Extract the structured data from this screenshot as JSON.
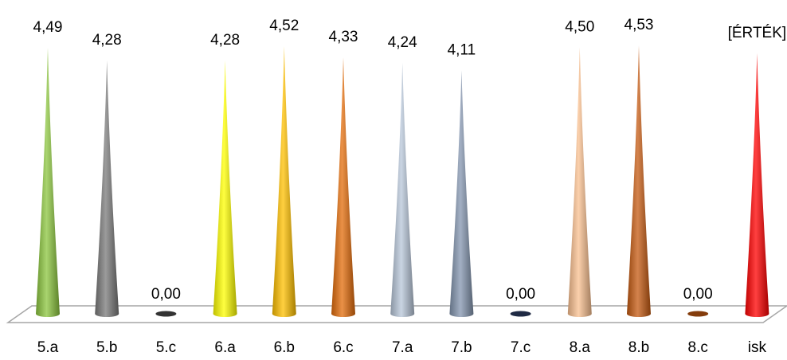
{
  "chart_data": {
    "type": "bar",
    "shape": "cone",
    "categories": [
      "5.a",
      "5.b",
      "5.c",
      "6.a",
      "6.b",
      "6.c",
      "7.a",
      "7.b",
      "7.c",
      "8.a",
      "8.b",
      "8.c",
      "isk"
    ],
    "values": [
      4.49,
      4.28,
      0.0,
      4.28,
      4.52,
      4.33,
      4.24,
      4.11,
      0.0,
      4.5,
      4.53,
      0.0,
      4.4
    ],
    "data_labels": [
      "4,49",
      "4,28",
      "0,00",
      "4,28",
      "4,52",
      "4,33",
      "4,24",
      "4,11",
      "0,00",
      "4,50",
      "4,53",
      "0,00",
      "[ÉRTÉK]"
    ],
    "label_colors": [
      "#000000",
      "#000000",
      "#000000",
      "#000000",
      "#000000",
      "#000000",
      "#000000",
      "#000000",
      "#000000",
      "#000000",
      "#000000",
      "#000000",
      "#ff0000"
    ],
    "colors": [
      "#8cc63f",
      "#7a7a7a",
      "#333333",
      "#ffff00",
      "#ffc000",
      "#e36c0a",
      "#b8c7d9",
      "#8496b0",
      "#1f2a44",
      "#fac090",
      "#c55a11",
      "#843c0c",
      "#ff0000"
    ],
    "ylim": [
      0,
      4.6
    ],
    "grid": false,
    "legend": "none"
  }
}
